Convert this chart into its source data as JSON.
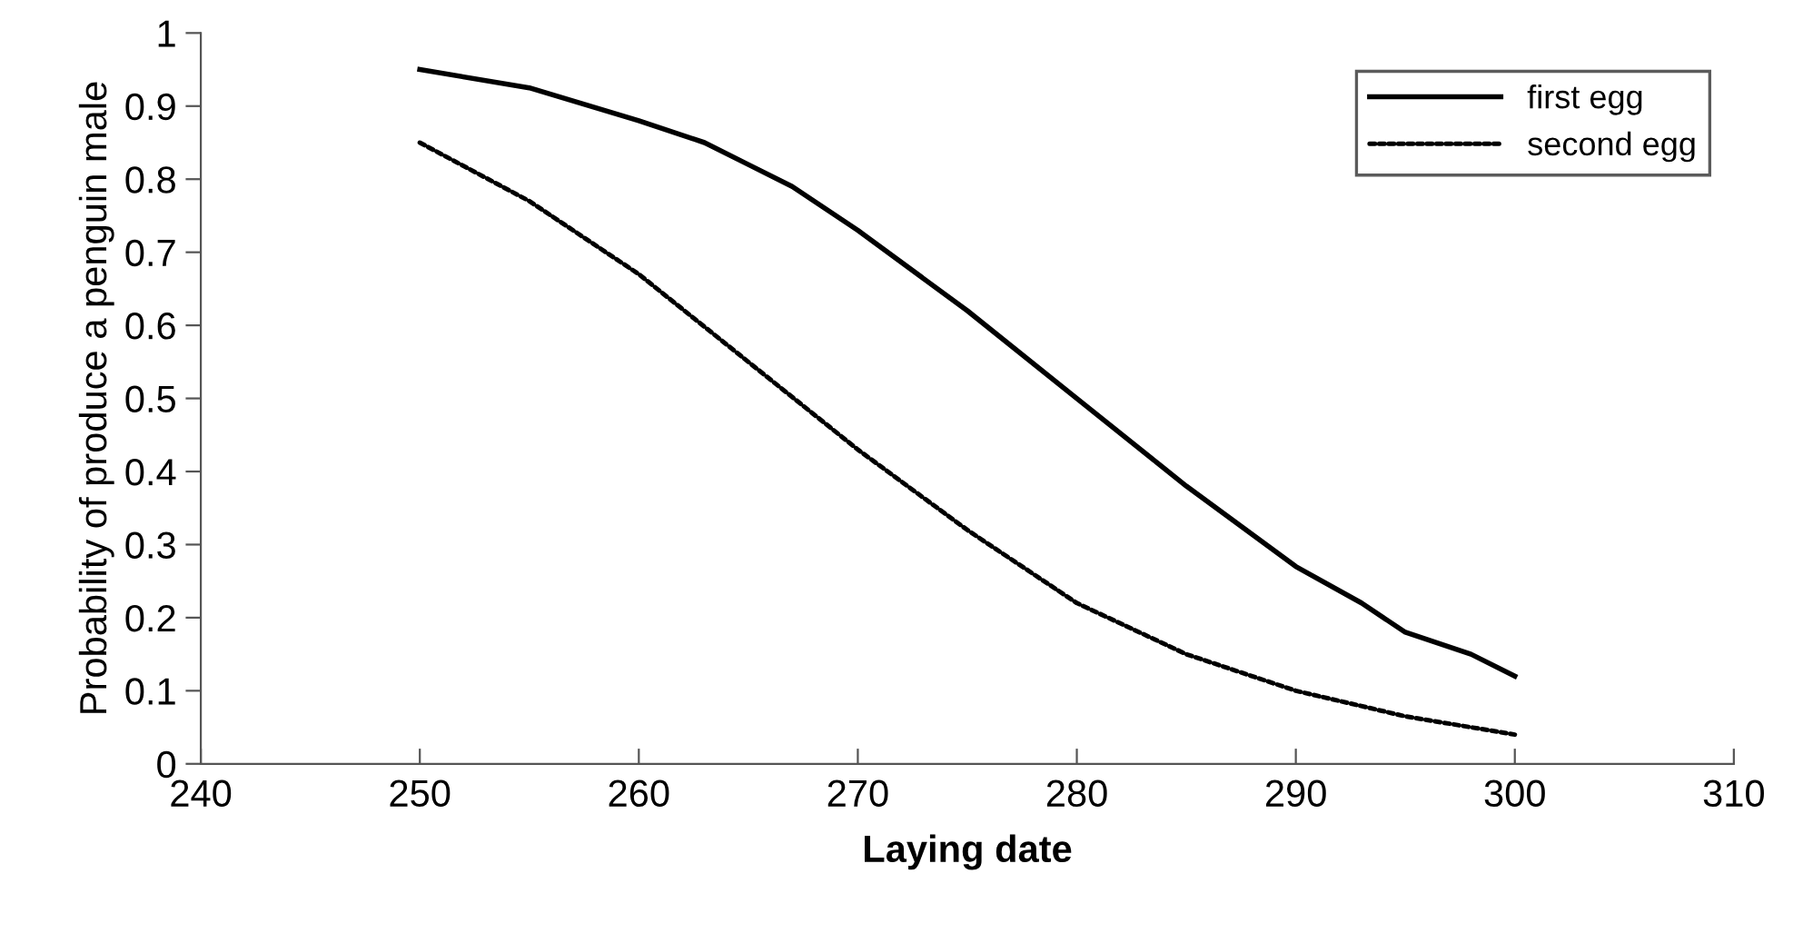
{
  "chart_data": {
    "type": "line",
    "xlabel": "Laying date",
    "ylabel": "Probability of produce a penguin male",
    "xlim": [
      240,
      310
    ],
    "xticks": [
      240,
      250,
      260,
      270,
      280,
      290,
      300,
      310
    ],
    "ylim": [
      0,
      1
    ],
    "yticks": [
      0,
      0.1,
      0.2,
      0.3,
      0.4,
      0.5,
      0.6,
      0.7,
      0.8,
      0.9,
      1
    ],
    "grid": false,
    "legend": "top right",
    "series": [
      {
        "name": "first egg",
        "color": "#000000",
        "line_style": "solid",
        "x": [
          250,
          255,
          260,
          263,
          265,
          267,
          270,
          275,
          280,
          285,
          290,
          293,
          295,
          298,
          300
        ],
        "values": [
          0.95,
          0.925,
          0.88,
          0.85,
          0.82,
          0.79,
          0.73,
          0.62,
          0.5,
          0.38,
          0.27,
          0.22,
          0.18,
          0.15,
          0.12
        ]
      },
      {
        "name": "second egg",
        "color": "#000000",
        "line_style": "dotted",
        "x": [
          250,
          255,
          260,
          265,
          270,
          275,
          280,
          285,
          290,
          295,
          300
        ],
        "values": [
          0.85,
          0.77,
          0.67,
          0.55,
          0.43,
          0.32,
          0.22,
          0.15,
          0.1,
          0.065,
          0.04
        ]
      }
    ]
  }
}
